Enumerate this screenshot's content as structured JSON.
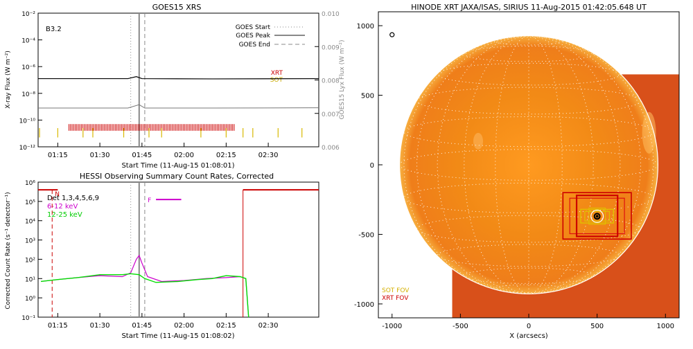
{
  "chart_data": [
    {
      "id": "goes",
      "type": "line",
      "title": "GOES15 XRS",
      "xlabel": "Start Time (11-Aug-15 01:08:01)",
      "ylabel": "X-ray Flux (W m⁻²)",
      "ylabel2": "GOES15 Lyx Flux (W m⁻²)",
      "class_label": "B3.2",
      "xlim_minutes": [
        68,
        168
      ],
      "x_ticks": [
        {
          "m": 75,
          "label": "01:15"
        },
        {
          "m": 90,
          "label": "01:30"
        },
        {
          "m": 105,
          "label": "01:45"
        },
        {
          "m": 120,
          "label": "02:00"
        },
        {
          "m": 135,
          "label": "02:15"
        },
        {
          "m": 150,
          "label": "02:30"
        }
      ],
      "y_ticks": [
        "10⁻²",
        "10⁻⁴",
        "10⁻⁶",
        "10⁻⁸",
        "10⁻¹⁰",
        "10⁻¹²"
      ],
      "y2_ticks": [
        "0.010",
        "0.009",
        "0.008",
        "0.007",
        "0.006"
      ],
      "legend": [
        {
          "label": "GOES Start",
          "style": "dotted"
        },
        {
          "label": "GOES Peak",
          "style": "solid"
        },
        {
          "label": "GOES End",
          "style": "dashed"
        }
      ],
      "markers_minutes": {
        "start": 101,
        "peak": 104,
        "end": 106
      },
      "series": [
        {
          "name": "XRT",
          "color": "#cc0000"
        },
        {
          "name": "SOT",
          "color": "#e0c000"
        }
      ],
      "flux_high_log": [
        [
          68,
          -6.9
        ],
        [
          90,
          -6.9
        ],
        [
          100,
          -6.9
        ],
        [
          103,
          -6.75
        ],
        [
          105,
          -6.9
        ],
        [
          130,
          -6.92
        ],
        [
          168,
          -6.9
        ]
      ],
      "flux_low_log": [
        [
          68,
          -9.1
        ],
        [
          100,
          -9.1
        ],
        [
          104,
          -8.85
        ],
        [
          106,
          -9.1
        ],
        [
          130,
          -9.1
        ],
        [
          168,
          -9.08
        ]
      ],
      "xrt_obs_window_minutes": [
        79,
        138
      ],
      "sot_obs_minutes": [
        68.5,
        75,
        84,
        87.5,
        98.5,
        107.5,
        112,
        126,
        135,
        141,
        144.5,
        153.5,
        162
      ]
    },
    {
      "id": "hessi",
      "type": "line",
      "title": "HESSI Observing Summary Count Rates, Corrected",
      "xlabel": "Start Time (11-Aug-15 01:08:02)",
      "ylabel": "Corrected Count Rate (s⁻¹ detector⁻¹)",
      "xlim_minutes": [
        68,
        168
      ],
      "x_ticks": [
        {
          "m": 75,
          "label": "01:15"
        },
        {
          "m": 90,
          "label": "01:30"
        },
        {
          "m": 105,
          "label": "01:45"
        },
        {
          "m": 120,
          "label": "02:00"
        },
        {
          "m": 135,
          "label": "02:15"
        },
        {
          "m": 150,
          "label": "02:30"
        }
      ],
      "y_ticks": [
        "10⁶",
        "10⁵",
        "10⁴",
        "10³",
        "10²",
        "10¹",
        "10⁰",
        "10⁻¹"
      ],
      "det_label": "Det 1,3,4,5,6,9",
      "series": [
        {
          "name": "6-12 keV",
          "color": "#cc00cc",
          "points_log": [
            [
              69,
              0.85
            ],
            [
              75,
              0.95
            ],
            [
              82,
              1.05
            ],
            [
              90,
              1.15
            ],
            [
              98,
              1.1
            ],
            [
              101,
              1.3
            ],
            [
              103,
              2.0
            ],
            [
              104,
              2.2
            ],
            [
              105,
              1.8
            ],
            [
              107,
              1.1
            ],
            [
              112,
              0.85
            ],
            [
              120,
              0.9
            ],
            [
              128,
              1.0
            ],
            [
              135,
              1.05
            ],
            [
              140,
              1.1
            ],
            [
              142,
              1.0
            ],
            [
              143,
              -1
            ]
          ]
        },
        {
          "name": "12-25 keV",
          "color": "#00dd00",
          "points_log": [
            [
              69,
              0.85
            ],
            [
              75,
              0.95
            ],
            [
              82,
              1.05
            ],
            [
              90,
              1.2
            ],
            [
              98,
              1.2
            ],
            [
              101,
              1.25
            ],
            [
              104,
              1.2
            ],
            [
              106,
              1.0
            ],
            [
              110,
              0.8
            ],
            [
              118,
              0.85
            ],
            [
              125,
              0.95
            ],
            [
              130,
              1.0
            ],
            [
              135,
              1.15
            ],
            [
              140,
              1.1
            ],
            [
              142,
              1.0
            ],
            [
              143,
              -1
            ]
          ]
        }
      ],
      "night_label": "N",
      "flare_label": "F",
      "flare_minutes": [
        110,
        119
      ],
      "flare_log": 5.1,
      "night_bars": [
        [
          68,
          75,
          5.6
        ],
        [
          141,
          168,
          5.6
        ]
      ],
      "night_edges_minutes": [
        73,
        141
      ],
      "markers_minutes": {
        "start": 101,
        "peak": 104,
        "end": 106
      }
    },
    {
      "id": "xrt",
      "type": "image",
      "title": "HINODE XRT JAXA/ISAS, SIRIUS 11-Aug-2015 01:42:05.648 UT",
      "xlabel": "X (arcsecs)",
      "ylabel": "Y (arcsecs)",
      "xlim": [
        -1100,
        1100
      ],
      "ylim": [
        -1100,
        1100
      ],
      "x_ticks": [
        -1000,
        -500,
        0,
        500,
        1000
      ],
      "y_ticks": [
        1000,
        500,
        0,
        -500,
        -1000
      ],
      "sun_radius": 945,
      "image_extent": {
        "x": [
          -560,
          1100
        ],
        "y": [
          -1100,
          650
        ]
      },
      "target": [
        500,
        -370
      ],
      "legend": [
        {
          "label": "SOT FOV",
          "color": "#e0c000"
        },
        {
          "label": "XRT FOV",
          "color": "#cc0000"
        }
      ]
    }
  ]
}
